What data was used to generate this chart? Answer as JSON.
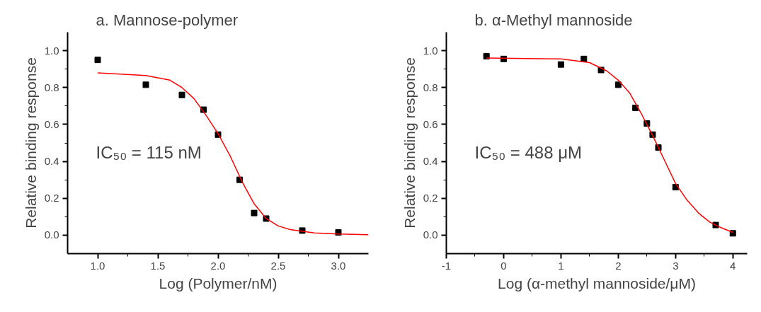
{
  "chart_data": [
    {
      "type": "scatter",
      "title": "a. Mannose-polymer",
      "xlabel": "Log (Polymer/nM)",
      "ylabel": "Relative binding response",
      "xlim": [
        0.75,
        3.25
      ],
      "xticks": [
        {
          "value": 1.0,
          "label": "1.0"
        },
        {
          "value": 1.5,
          "label": "1.5"
        },
        {
          "value": 2.0,
          "label": "2.0"
        },
        {
          "value": 2.5,
          "label": "2.5"
        },
        {
          "value": 3.0,
          "label": "3.0"
        }
      ],
      "ylim": [
        -0.1,
        1.1
      ],
      "yticks": [
        {
          "value": 0.0,
          "label": "0.0"
        },
        {
          "value": 0.2,
          "label": "0.2"
        },
        {
          "value": 0.4,
          "label": "0.4"
        },
        {
          "value": 0.6,
          "label": "0.6"
        },
        {
          "value": 0.8,
          "label": "0.8"
        },
        {
          "value": 1.0,
          "label": "1.0"
        }
      ],
      "annotations": [
        "IC₅₀ = 115 nM"
      ],
      "series": [
        {
          "marker": "square",
          "color": "#000000",
          "x": [
            1.0,
            1.4,
            1.7,
            1.88,
            2.0,
            2.18,
            2.3,
            2.4,
            2.7,
            3.0
          ],
          "values": [
            0.95,
            0.815,
            0.76,
            0.68,
            0.545,
            0.3,
            0.12,
            0.09,
            0.025,
            0.015
          ]
        },
        {
          "type": "line",
          "color": "#ff0000",
          "x": [
            1.0,
            1.4,
            1.6,
            1.7,
            1.8,
            1.9,
            2.0,
            2.1,
            2.2,
            2.3,
            2.4,
            2.5,
            2.6,
            2.8,
            3.0,
            3.25
          ],
          "values": [
            0.88,
            0.865,
            0.84,
            0.8,
            0.74,
            0.65,
            0.55,
            0.43,
            0.29,
            0.17,
            0.09,
            0.05,
            0.03,
            0.012,
            0.006,
            0.003
          ]
        }
      ]
    },
    {
      "type": "scatter",
      "title": "b. α-Methyl mannoside",
      "xlabel": "Log (α-methyl mannoside/μM)",
      "ylabel": "Relative binding response",
      "xlim": [
        -1,
        4.25
      ],
      "xticks": [
        -1,
        0,
        1,
        2,
        3,
        4
      ],
      "ylim": [
        -0.1,
        1.1
      ],
      "yticks": [
        {
          "value": 0.0,
          "label": "0.0"
        },
        {
          "value": 0.2,
          "label": "0.2"
        },
        {
          "value": 0.4,
          "label": "0.4"
        },
        {
          "value": 0.6,
          "label": "0.6"
        },
        {
          "value": 0.8,
          "label": "0.8"
        },
        {
          "value": 1.0,
          "label": "1.0"
        }
      ],
      "annotations": [
        "IC₅₀ = 488 μM"
      ],
      "series": [
        {
          "marker": "square",
          "color": "#000000",
          "x": [
            -0.3,
            0,
            1,
            1.4,
            1.7,
            2.0,
            2.3,
            2.5,
            2.6,
            2.7,
            3.0,
            3.7,
            4.0
          ],
          "values": [
            0.97,
            0.955,
            0.925,
            0.955,
            0.895,
            0.815,
            0.69,
            0.605,
            0.545,
            0.475,
            0.26,
            0.055,
            0.01
          ]
        },
        {
          "type": "line",
          "color": "#ff0000",
          "x": [
            -0.3,
            1.0,
            1.5,
            1.8,
            2.0,
            2.2,
            2.4,
            2.6,
            2.8,
            3.0,
            3.2,
            3.4,
            3.6,
            3.8,
            4.0
          ],
          "values": [
            0.96,
            0.955,
            0.935,
            0.89,
            0.84,
            0.77,
            0.66,
            0.54,
            0.41,
            0.28,
            0.19,
            0.12,
            0.07,
            0.04,
            0.015
          ]
        }
      ]
    }
  ]
}
